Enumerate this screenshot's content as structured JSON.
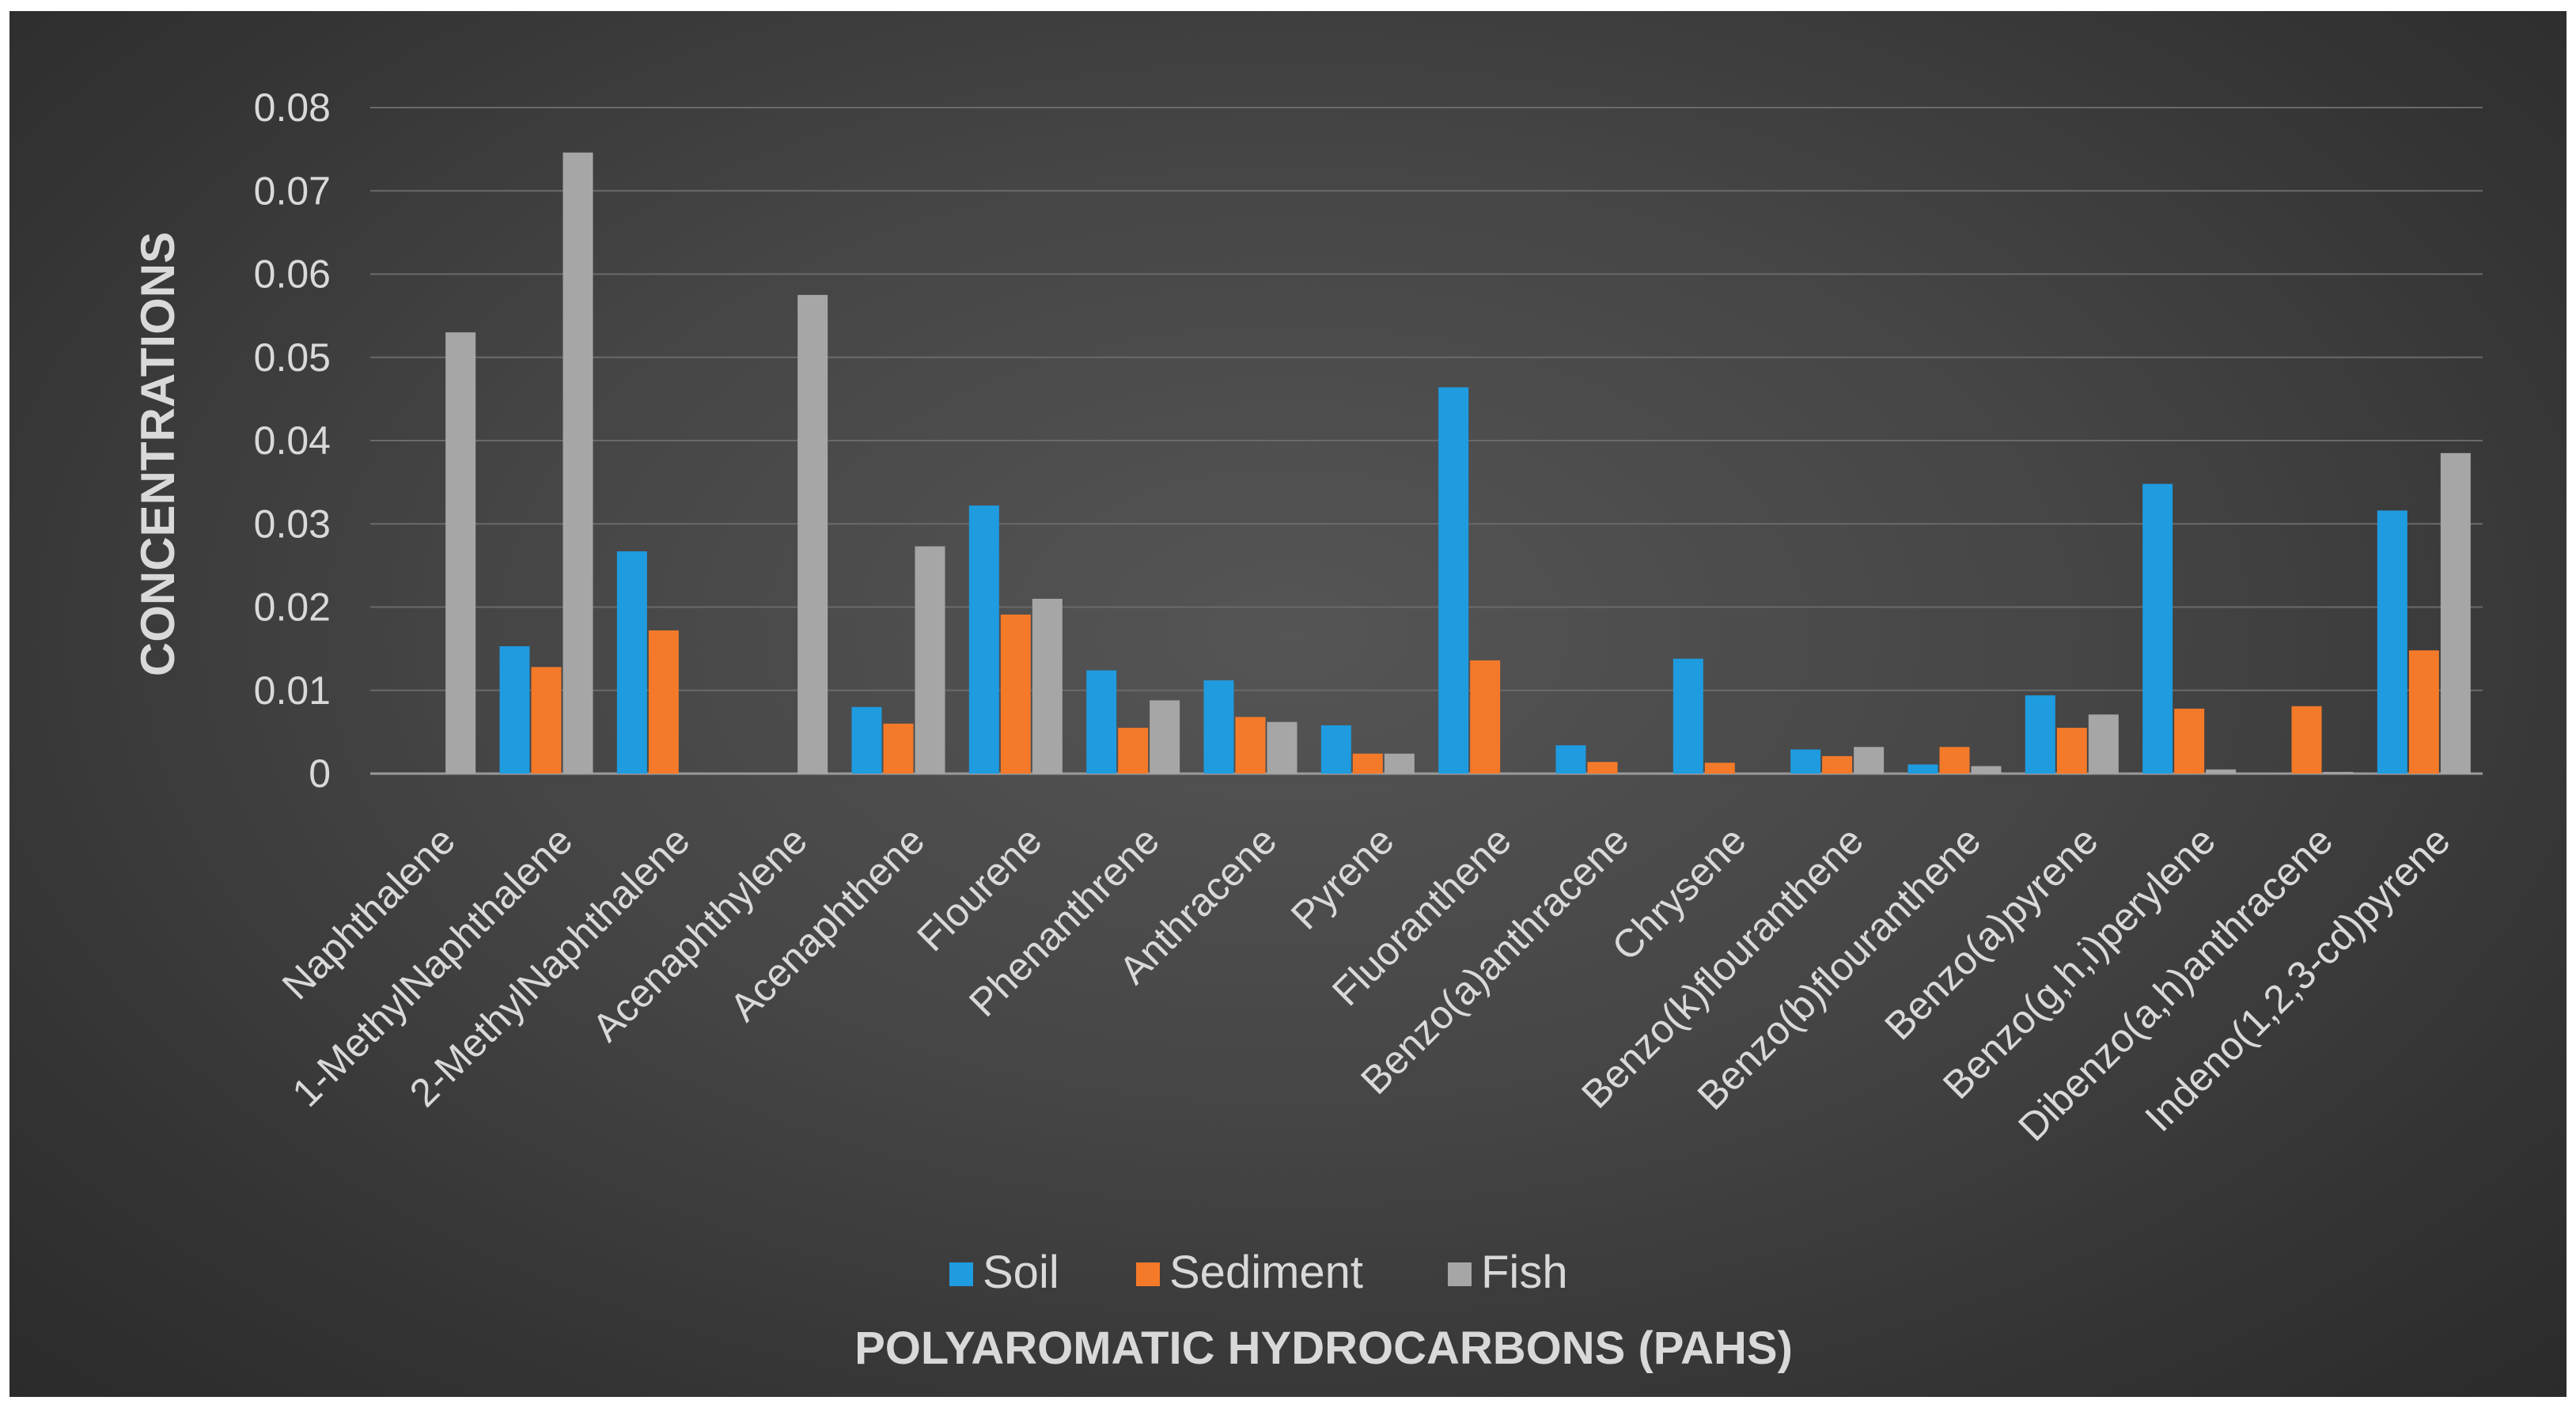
{
  "chart_data": {
    "type": "bar",
    "title": "",
    "xlabel": "POLYAROMATIC HYDROCARBONS (PAHS)",
    "ylabel": "CONCENTRATIONS",
    "ylim": [
      0,
      0.08
    ],
    "yticks": [
      "0",
      "0.01",
      "0.02",
      "0.03",
      "0.04",
      "0.05",
      "0.06",
      "0.07",
      "0.08"
    ],
    "grid": true,
    "legend": "bottom",
    "categories": [
      "Naphthalene",
      "1-MethylNaphthalene",
      "2-MethylNaphthalene",
      "Acenaphthylene",
      "Acenaphthene",
      "Flourene",
      "Phenanthrene",
      "Anthracene",
      "Pyrene",
      "Fluoranthene",
      "Benzo(a)anthracene",
      "Chrysene",
      "Benzo(k)flouranthene",
      "Benzo(b)flouranthene",
      "Benzo(a)pyrene",
      "Benzo(g,h,i)perylene",
      "Dibenzo(a,h)anthracene",
      "Indeno(1,2,3-cd)pyrene"
    ],
    "series": [
      {
        "name": "Soil",
        "color": "#1f9be0",
        "values": [
          0,
          0.0153,
          0.0267,
          0,
          0.008,
          0.0322,
          0.0124,
          0.0112,
          0.0058,
          0.0464,
          0.0034,
          0.0138,
          0.0029,
          0.0011,
          0.0094,
          0.0348,
          0,
          0.0316
        ]
      },
      {
        "name": "Sediment",
        "color": "#f47a2a",
        "values": [
          0,
          0.0128,
          0.0172,
          0,
          0.006,
          0.0191,
          0.0055,
          0.0068,
          0.0024,
          0.0136,
          0.0014,
          0.0013,
          0.0021,
          0.0032,
          0.0055,
          0.0078,
          0.0081,
          0.0148
        ]
      },
      {
        "name": "Fish",
        "color": "#a6a6a6",
        "values": [
          0.053,
          0.0746,
          0,
          0.0575,
          0.0273,
          0.021,
          0.0088,
          0.0062,
          0.0024,
          0,
          0,
          0,
          0.0032,
          0.0009,
          0.0071,
          0.0005,
          0.0002,
          0.0385
        ]
      }
    ]
  }
}
